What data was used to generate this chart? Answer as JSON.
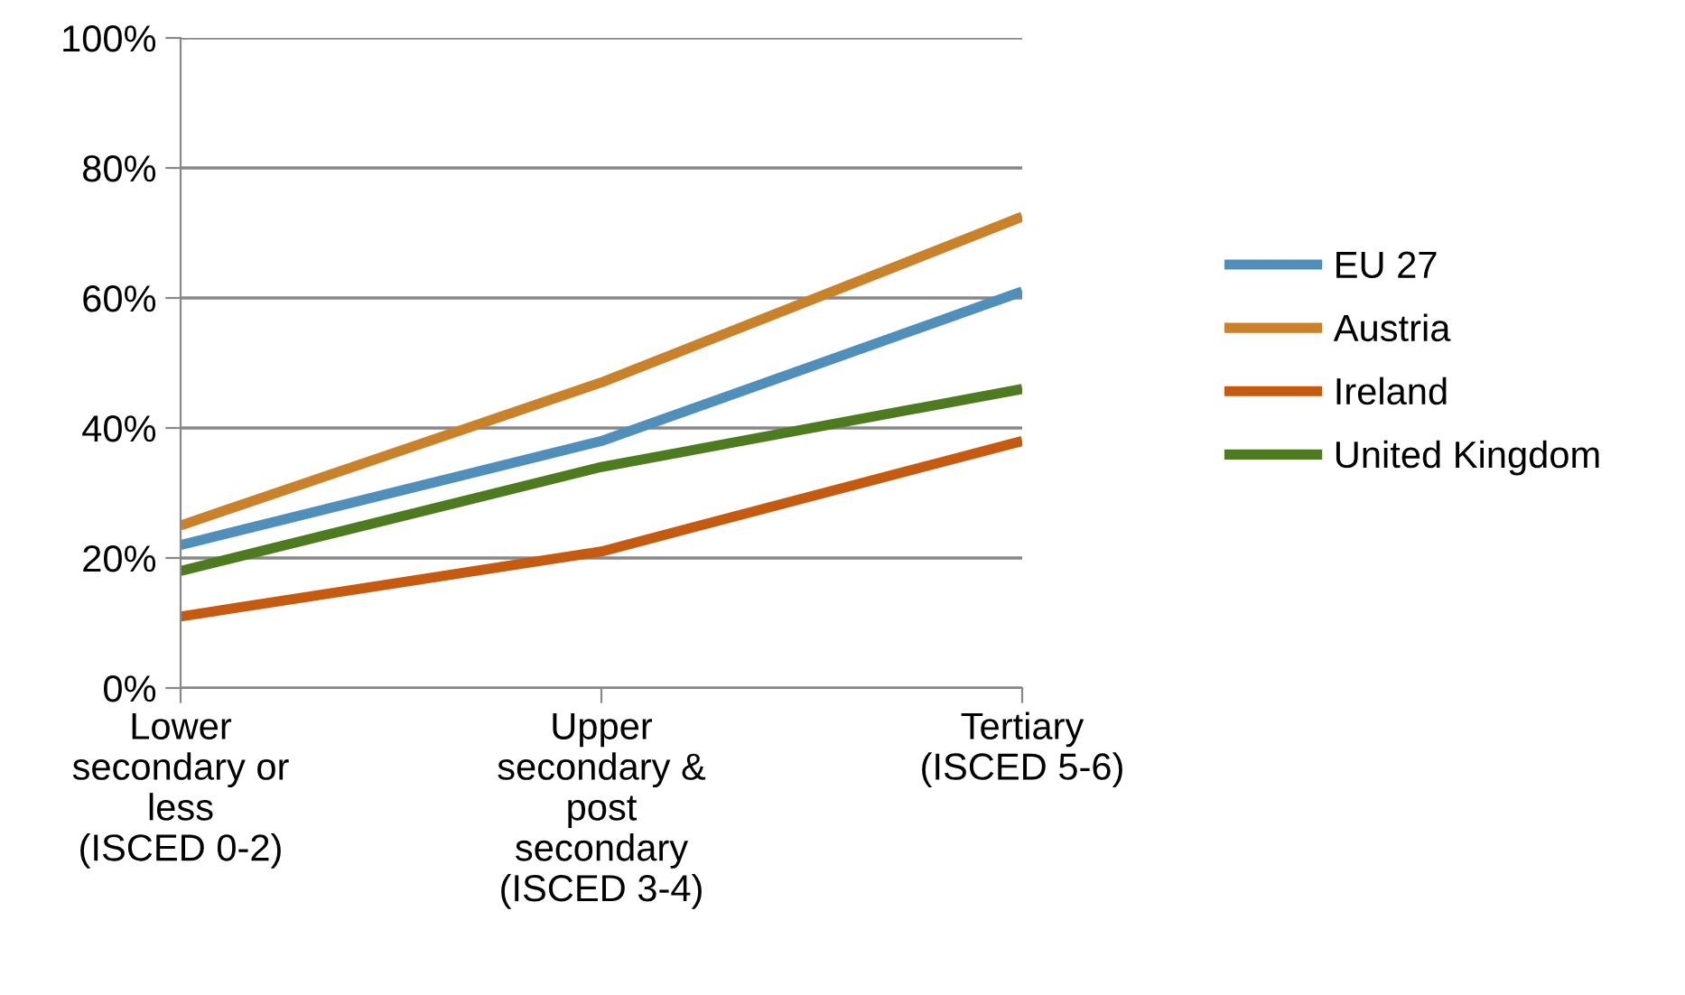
{
  "chart_data": {
    "type": "line",
    "categories": [
      "Lower\nsecondary or\nless\n(ISCED 0-2)",
      "Upper\nsecondary &\npost\nsecondary\n(ISCED 3-4)",
      "Tertiary\n(ISCED 5-6)"
    ],
    "series": [
      {
        "name": "EU 27",
        "color": "#4f8fb9",
        "values": [
          22,
          38,
          61
        ]
      },
      {
        "name": "Austria",
        "color": "#c9812a",
        "values": [
          25,
          47,
          72.5
        ]
      },
      {
        "name": "Ireland",
        "color": "#c55a11",
        "values": [
          11,
          21,
          38
        ]
      },
      {
        "name": "United Kingdom",
        "color": "#4e7b1f",
        "values": [
          18,
          34,
          46
        ]
      }
    ],
    "ylim": [
      0,
      100
    ],
    "yticks": [
      {
        "value": 0,
        "label": "0%"
      },
      {
        "value": 20,
        "label": "20%"
      },
      {
        "value": 40,
        "label": "40%"
      },
      {
        "value": 60,
        "label": "60%"
      },
      {
        "value": 80,
        "label": "80%"
      },
      {
        "value": 100,
        "label": "100%"
      }
    ],
    "grid": "y",
    "legend": "right",
    "marker": "none",
    "line_style": "solid"
  }
}
